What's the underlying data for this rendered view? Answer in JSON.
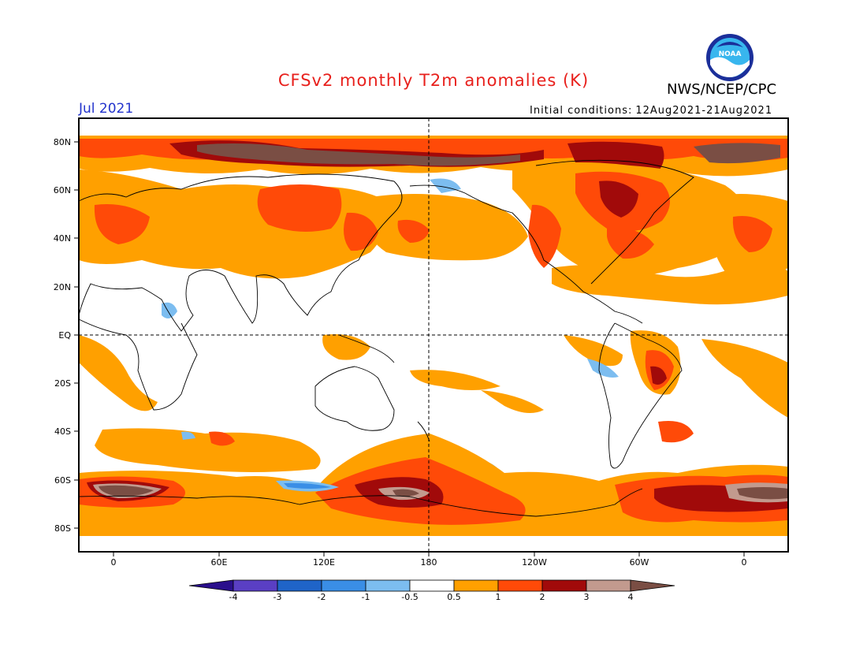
{
  "header": {
    "title": "CFSv2 monthly T2m anomalies (K)",
    "agency": "NWS/NCEP/CPC",
    "logo_text": "NOAA",
    "period": "Jul 2021",
    "initial_conditions_label": "Initial conditions:",
    "initial_conditions_value": "12Aug2021-21Aug2021"
  },
  "map": {
    "lat_labels": [
      "80N",
      "60N",
      "40N",
      "20N",
      "EQ",
      "20S",
      "40S",
      "60S",
      "80S"
    ],
    "lon_labels": [
      "0",
      "60E",
      "120E",
      "180",
      "120W",
      "60W",
      "0"
    ],
    "reference_lines": [
      "EQ",
      "180"
    ]
  },
  "colorbar": {
    "labels": [
      "-4",
      "-3",
      "-2",
      "-1",
      "-0.5",
      "0.5",
      "1",
      "2",
      "3",
      "4"
    ],
    "colors": [
      "#2a0f8c",
      "#5a3fc4",
      "#1f64c8",
      "#3a8ee6",
      "#7cbdf0",
      "#ffffff",
      "#ffa000",
      "#ff4a08",
      "#a10a0a",
      "#c29a8e",
      "#7a4e44"
    ]
  },
  "colors": {
    "title": "#e8201c",
    "period": "#2233cc",
    "land_outline": "#000000"
  }
}
